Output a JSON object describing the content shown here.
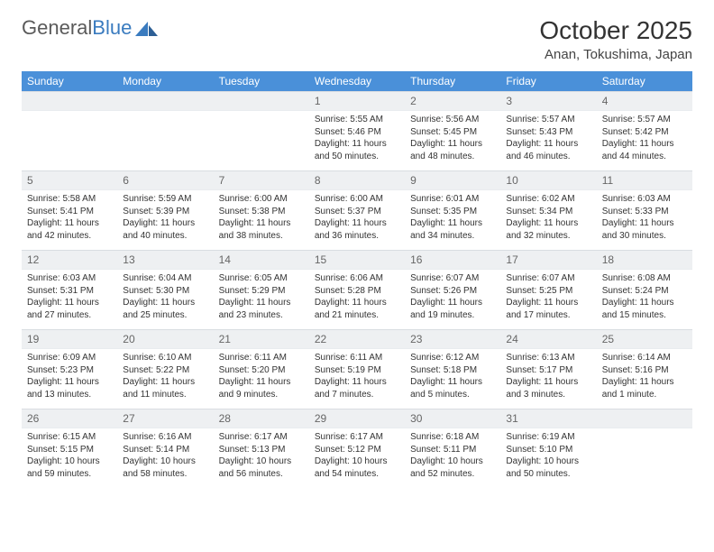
{
  "logo": {
    "text1": "General",
    "text2": "Blue"
  },
  "title": "October 2025",
  "location": "Anan, Tokushima, Japan",
  "colors": {
    "header_bg": "#4a90d9",
    "header_text": "#ffffff",
    "daynum_bg": "#eef0f2",
    "daynum_text": "#666666",
    "body_text": "#333333",
    "page_bg": "#ffffff",
    "logo_gray": "#5a5a5a",
    "logo_blue": "#3a7bbf"
  },
  "weekdays": [
    "Sunday",
    "Monday",
    "Tuesday",
    "Wednesday",
    "Thursday",
    "Friday",
    "Saturday"
  ],
  "weeks": [
    [
      {
        "day": ""
      },
      {
        "day": ""
      },
      {
        "day": ""
      },
      {
        "day": "1",
        "sunrise": "Sunrise: 5:55 AM",
        "sunset": "Sunset: 5:46 PM",
        "daylight": "Daylight: 11 hours and 50 minutes."
      },
      {
        "day": "2",
        "sunrise": "Sunrise: 5:56 AM",
        "sunset": "Sunset: 5:45 PM",
        "daylight": "Daylight: 11 hours and 48 minutes."
      },
      {
        "day": "3",
        "sunrise": "Sunrise: 5:57 AM",
        "sunset": "Sunset: 5:43 PM",
        "daylight": "Daylight: 11 hours and 46 minutes."
      },
      {
        "day": "4",
        "sunrise": "Sunrise: 5:57 AM",
        "sunset": "Sunset: 5:42 PM",
        "daylight": "Daylight: 11 hours and 44 minutes."
      }
    ],
    [
      {
        "day": "5",
        "sunrise": "Sunrise: 5:58 AM",
        "sunset": "Sunset: 5:41 PM",
        "daylight": "Daylight: 11 hours and 42 minutes."
      },
      {
        "day": "6",
        "sunrise": "Sunrise: 5:59 AM",
        "sunset": "Sunset: 5:39 PM",
        "daylight": "Daylight: 11 hours and 40 minutes."
      },
      {
        "day": "7",
        "sunrise": "Sunrise: 6:00 AM",
        "sunset": "Sunset: 5:38 PM",
        "daylight": "Daylight: 11 hours and 38 minutes."
      },
      {
        "day": "8",
        "sunrise": "Sunrise: 6:00 AM",
        "sunset": "Sunset: 5:37 PM",
        "daylight": "Daylight: 11 hours and 36 minutes."
      },
      {
        "day": "9",
        "sunrise": "Sunrise: 6:01 AM",
        "sunset": "Sunset: 5:35 PM",
        "daylight": "Daylight: 11 hours and 34 minutes."
      },
      {
        "day": "10",
        "sunrise": "Sunrise: 6:02 AM",
        "sunset": "Sunset: 5:34 PM",
        "daylight": "Daylight: 11 hours and 32 minutes."
      },
      {
        "day": "11",
        "sunrise": "Sunrise: 6:03 AM",
        "sunset": "Sunset: 5:33 PM",
        "daylight": "Daylight: 11 hours and 30 minutes."
      }
    ],
    [
      {
        "day": "12",
        "sunrise": "Sunrise: 6:03 AM",
        "sunset": "Sunset: 5:31 PM",
        "daylight": "Daylight: 11 hours and 27 minutes."
      },
      {
        "day": "13",
        "sunrise": "Sunrise: 6:04 AM",
        "sunset": "Sunset: 5:30 PM",
        "daylight": "Daylight: 11 hours and 25 minutes."
      },
      {
        "day": "14",
        "sunrise": "Sunrise: 6:05 AM",
        "sunset": "Sunset: 5:29 PM",
        "daylight": "Daylight: 11 hours and 23 minutes."
      },
      {
        "day": "15",
        "sunrise": "Sunrise: 6:06 AM",
        "sunset": "Sunset: 5:28 PM",
        "daylight": "Daylight: 11 hours and 21 minutes."
      },
      {
        "day": "16",
        "sunrise": "Sunrise: 6:07 AM",
        "sunset": "Sunset: 5:26 PM",
        "daylight": "Daylight: 11 hours and 19 minutes."
      },
      {
        "day": "17",
        "sunrise": "Sunrise: 6:07 AM",
        "sunset": "Sunset: 5:25 PM",
        "daylight": "Daylight: 11 hours and 17 minutes."
      },
      {
        "day": "18",
        "sunrise": "Sunrise: 6:08 AM",
        "sunset": "Sunset: 5:24 PM",
        "daylight": "Daylight: 11 hours and 15 minutes."
      }
    ],
    [
      {
        "day": "19",
        "sunrise": "Sunrise: 6:09 AM",
        "sunset": "Sunset: 5:23 PM",
        "daylight": "Daylight: 11 hours and 13 minutes."
      },
      {
        "day": "20",
        "sunrise": "Sunrise: 6:10 AM",
        "sunset": "Sunset: 5:22 PM",
        "daylight": "Daylight: 11 hours and 11 minutes."
      },
      {
        "day": "21",
        "sunrise": "Sunrise: 6:11 AM",
        "sunset": "Sunset: 5:20 PM",
        "daylight": "Daylight: 11 hours and 9 minutes."
      },
      {
        "day": "22",
        "sunrise": "Sunrise: 6:11 AM",
        "sunset": "Sunset: 5:19 PM",
        "daylight": "Daylight: 11 hours and 7 minutes."
      },
      {
        "day": "23",
        "sunrise": "Sunrise: 6:12 AM",
        "sunset": "Sunset: 5:18 PM",
        "daylight": "Daylight: 11 hours and 5 minutes."
      },
      {
        "day": "24",
        "sunrise": "Sunrise: 6:13 AM",
        "sunset": "Sunset: 5:17 PM",
        "daylight": "Daylight: 11 hours and 3 minutes."
      },
      {
        "day": "25",
        "sunrise": "Sunrise: 6:14 AM",
        "sunset": "Sunset: 5:16 PM",
        "daylight": "Daylight: 11 hours and 1 minute."
      }
    ],
    [
      {
        "day": "26",
        "sunrise": "Sunrise: 6:15 AM",
        "sunset": "Sunset: 5:15 PM",
        "daylight": "Daylight: 10 hours and 59 minutes."
      },
      {
        "day": "27",
        "sunrise": "Sunrise: 6:16 AM",
        "sunset": "Sunset: 5:14 PM",
        "daylight": "Daylight: 10 hours and 58 minutes."
      },
      {
        "day": "28",
        "sunrise": "Sunrise: 6:17 AM",
        "sunset": "Sunset: 5:13 PM",
        "daylight": "Daylight: 10 hours and 56 minutes."
      },
      {
        "day": "29",
        "sunrise": "Sunrise: 6:17 AM",
        "sunset": "Sunset: 5:12 PM",
        "daylight": "Daylight: 10 hours and 54 minutes."
      },
      {
        "day": "30",
        "sunrise": "Sunrise: 6:18 AM",
        "sunset": "Sunset: 5:11 PM",
        "daylight": "Daylight: 10 hours and 52 minutes."
      },
      {
        "day": "31",
        "sunrise": "Sunrise: 6:19 AM",
        "sunset": "Sunset: 5:10 PM",
        "daylight": "Daylight: 10 hours and 50 minutes."
      },
      {
        "day": ""
      }
    ]
  ]
}
